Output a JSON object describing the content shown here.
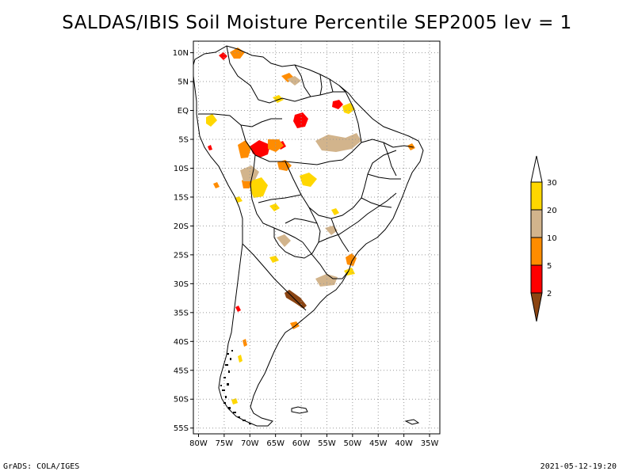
{
  "title": "SALDAS/IBIS Soil Moisture Percentile SEP2005 lev = 1",
  "map": {
    "lat_labels": [
      "10N",
      "5N",
      "EQ",
      "5S",
      "10S",
      "15S",
      "20S",
      "25S",
      "30S",
      "35S",
      "40S",
      "45S",
      "50S",
      "55S"
    ],
    "lat_values": [
      10,
      5,
      0,
      -5,
      -10,
      -15,
      -20,
      -25,
      -30,
      -35,
      -40,
      -45,
      -50,
      -55
    ],
    "lon_labels": [
      "80W",
      "75W",
      "70W",
      "65W",
      "60W",
      "55W",
      "50W",
      "45W",
      "40W",
      "35W"
    ],
    "lon_values": [
      -80,
      -75,
      -70,
      -65,
      -60,
      -55,
      -50,
      -45,
      -40,
      -35
    ],
    "lon_range": [
      -81,
      -33
    ],
    "lat_range": [
      -56,
      12
    ],
    "region": "South America"
  },
  "legend": {
    "labels": [
      "2",
      "5",
      "10",
      "20",
      "30"
    ],
    "colors": [
      "#8B4513",
      "#FF0000",
      "#FF8C00",
      "#D2B48C",
      "#FFD700",
      "#FFFFFF"
    ]
  },
  "footer": {
    "left": "GrADS: COLA/IGES",
    "right": "2021-05-12-19:20"
  }
}
